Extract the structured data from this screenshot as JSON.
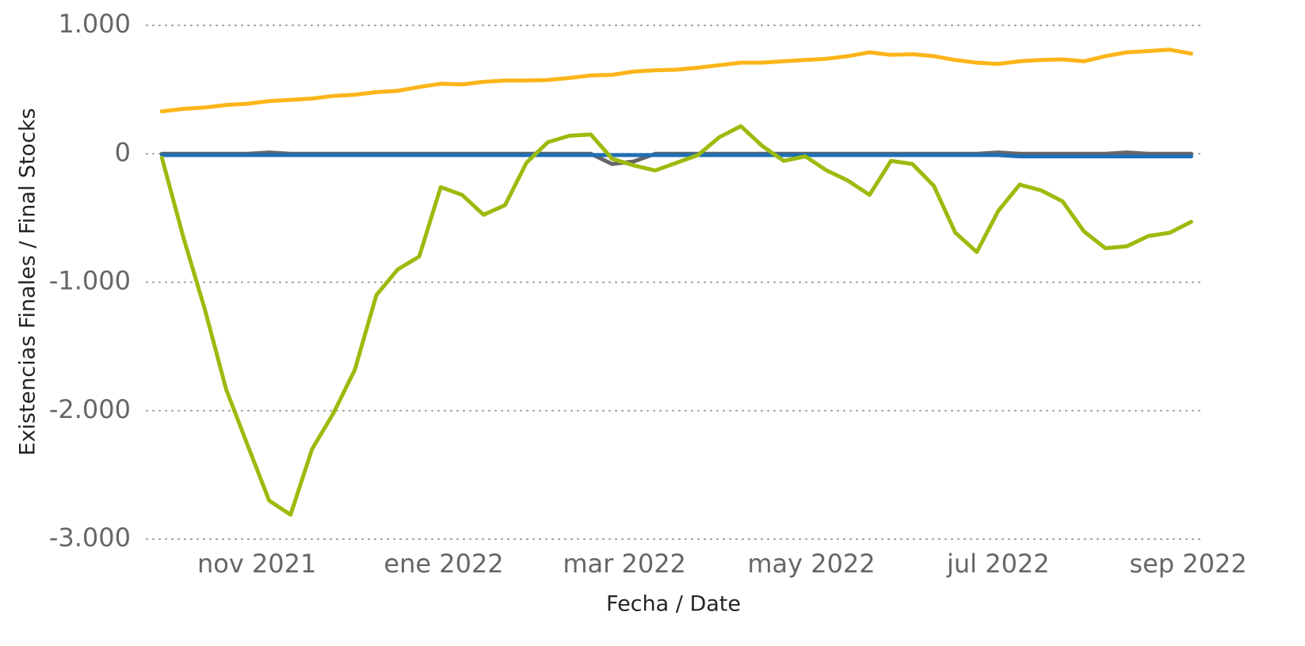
{
  "chart_data": {
    "type": "line",
    "y_label": "Existencias Finales / Final Stocks",
    "x_label": "Fecha / Date",
    "x": [
      "2021-10-01",
      "2021-10-08",
      "2021-10-15",
      "2021-10-22",
      "2021-10-29",
      "2021-11-05",
      "2021-11-12",
      "2021-11-19",
      "2021-11-26",
      "2021-12-03",
      "2021-12-10",
      "2021-12-17",
      "2021-12-24",
      "2021-12-31",
      "2022-01-07",
      "2022-01-14",
      "2022-01-21",
      "2022-01-28",
      "2022-02-04",
      "2022-02-11",
      "2022-02-18",
      "2022-02-25",
      "2022-03-04",
      "2022-03-11",
      "2022-03-18",
      "2022-03-25",
      "2022-04-01",
      "2022-04-08",
      "2022-04-15",
      "2022-04-22",
      "2022-04-29",
      "2022-05-06",
      "2022-05-13",
      "2022-05-20",
      "2022-05-27",
      "2022-06-03",
      "2022-06-10",
      "2022-06-17",
      "2022-06-24",
      "2022-07-01",
      "2022-07-08",
      "2022-07-15",
      "2022-07-22",
      "2022-07-29",
      "2022-08-05",
      "2022-08-12",
      "2022-08-19",
      "2022-08-26",
      "2022-09-02"
    ],
    "series": [
      {
        "color": "#fbb519",
        "values": [
          330,
          350,
          360,
          380,
          390,
          410,
          420,
          430,
          450,
          460,
          480,
          490,
          520,
          545,
          540,
          560,
          570,
          570,
          575,
          590,
          610,
          615,
          640,
          650,
          655,
          670,
          690,
          710,
          710,
          720,
          730,
          740,
          760,
          790,
          770,
          775,
          760,
          730,
          710,
          700,
          720,
          730,
          735,
          720,
          760,
          790,
          800,
          810,
          780
        ]
      },
      {
        "color": "#666666",
        "values": [
          0,
          0,
          0,
          0,
          0,
          10,
          0,
          0,
          0,
          0,
          0,
          0,
          0,
          0,
          0,
          0,
          0,
          0,
          0,
          0,
          0,
          -80,
          -60,
          0,
          0,
          0,
          0,
          0,
          0,
          0,
          0,
          0,
          0,
          0,
          0,
          0,
          0,
          0,
          0,
          10,
          0,
          0,
          0,
          0,
          0,
          10,
          0,
          0,
          0
        ]
      },
      {
        "color": "#1f6fb4",
        "values": [
          -10,
          -10,
          -10,
          -10,
          -10,
          -10,
          -10,
          -10,
          -10,
          -10,
          -10,
          -10,
          -10,
          -10,
          -10,
          -10,
          -10,
          -10,
          -10,
          -10,
          -10,
          -10,
          -10,
          -10,
          -10,
          -10,
          -10,
          -10,
          -10,
          -10,
          -10,
          -10,
          -10,
          -10,
          -10,
          -10,
          -10,
          -10,
          -10,
          -10,
          -20,
          -20,
          -20,
          -20,
          -20,
          -20,
          -20,
          -20,
          -20
        ]
      },
      {
        "color": "#9bbb0e",
        "values": [
          -30,
          -650,
          -1210,
          -1835,
          -2270,
          -2700,
          -2810,
          -2300,
          -2020,
          -1680,
          -1100,
          -900,
          -800,
          -260,
          -320,
          -475,
          -400,
          -70,
          90,
          140,
          150,
          -40,
          -90,
          -130,
          -70,
          -10,
          130,
          215,
          60,
          -55,
          -20,
          -130,
          -210,
          -320,
          -55,
          -80,
          -250,
          -615,
          -765,
          -445,
          -240,
          -285,
          -370,
          -605,
          -735,
          -720,
          -640,
          -615,
          -530
        ]
      }
    ],
    "xlim": [
      "2021-09-26",
      "2022-09-05"
    ],
    "xticks": [
      {
        "value": "2021-11",
        "label": "nov 2021"
      },
      {
        "value": "2022-01",
        "label": "ene 2022"
      },
      {
        "value": "2022-03",
        "label": "mar 2022"
      },
      {
        "value": "2022-05",
        "label": "may 2022"
      },
      {
        "value": "2022-07",
        "label": "jul 2022"
      },
      {
        "value": "2022-09",
        "label": "sep 2022"
      }
    ],
    "ylim": [
      -3000,
      1000
    ],
    "yticks": [
      {
        "value": -3000,
        "label": "-3.000"
      },
      {
        "value": -2000,
        "label": "-2.000"
      },
      {
        "value": -1000,
        "label": "-1.000"
      },
      0,
      {
        "value": 1000,
        "label": "1.000"
      }
    ],
    "grid": true
  }
}
